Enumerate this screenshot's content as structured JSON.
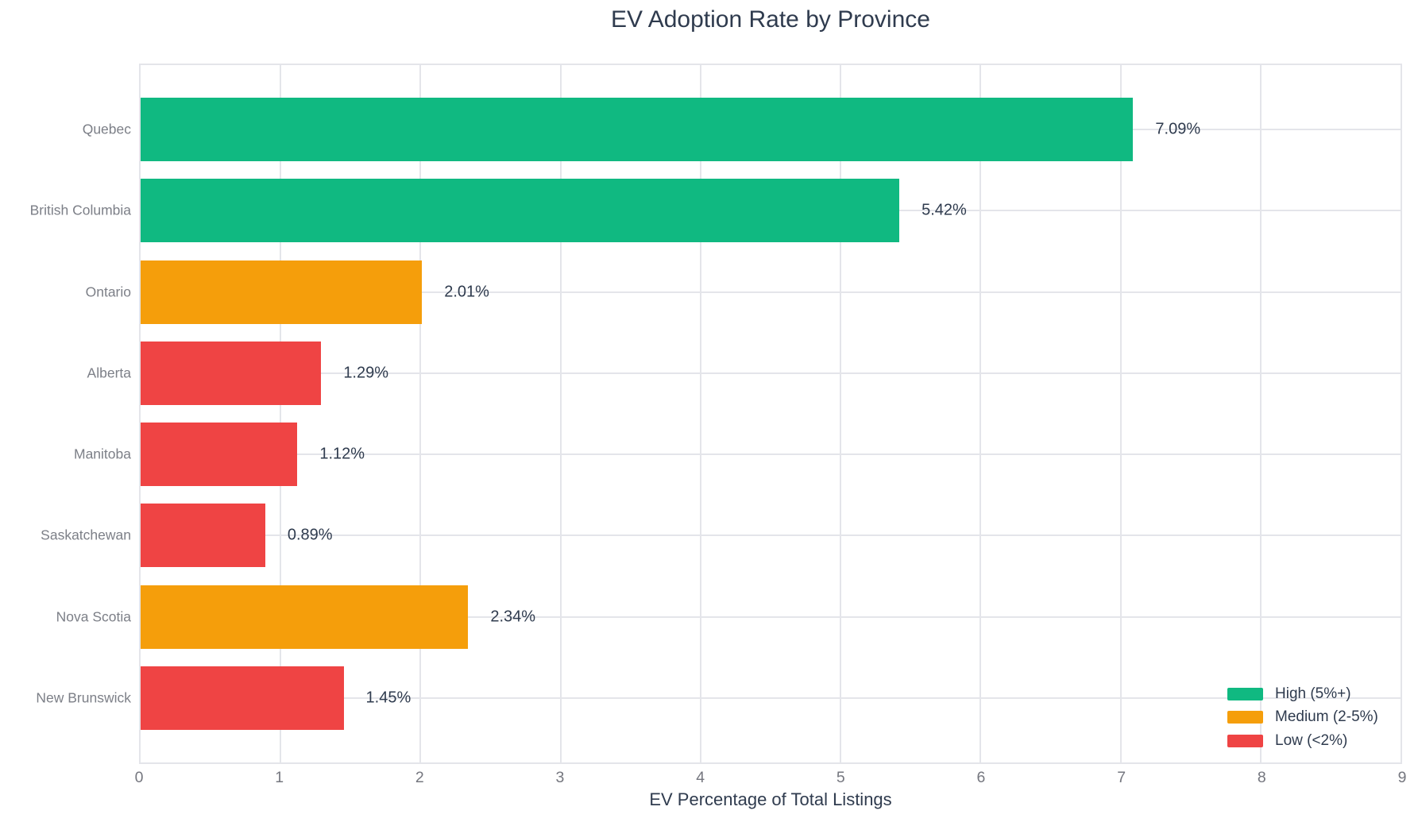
{
  "chart_data": {
    "type": "bar",
    "orientation": "horizontal",
    "title": "EV Adoption Rate by Province",
    "xlabel": "EV Percentage of Total Listings",
    "categories": [
      "Quebec",
      "British Columbia",
      "Ontario",
      "Alberta",
      "Manitoba",
      "Saskatchewan",
      "Nova Scotia",
      "New Brunswick"
    ],
    "values": [
      7.09,
      5.42,
      2.01,
      1.29,
      1.12,
      0.89,
      2.34,
      1.45
    ],
    "value_labels": [
      "7.09%",
      "5.42%",
      "2.01%",
      "1.29%",
      "1.12%",
      "0.89%",
      "2.34%",
      "1.45%"
    ],
    "levels": [
      "high",
      "high",
      "medium",
      "low",
      "low",
      "low",
      "medium",
      "low"
    ],
    "palette": {
      "high": "#10b981",
      "medium": "#f59e0b",
      "low": "#ef4444"
    },
    "xlim": [
      0,
      9
    ],
    "xticks": [
      0,
      1,
      2,
      3,
      4,
      5,
      6,
      7,
      8,
      9
    ],
    "grid": true,
    "legend": {
      "position": "bottom-right",
      "items": [
        {
          "label": "High (5%+)",
          "level": "high"
        },
        {
          "label": "Medium (2-5%)",
          "level": "medium"
        },
        {
          "label": "Low (<2%)",
          "level": "low"
        }
      ]
    },
    "style": {
      "grid_color": "#e4e5ea",
      "tick_text_color": "#75777f",
      "category_text_color": "#7c7f87",
      "label_text_color": "#2f3b4e"
    }
  }
}
